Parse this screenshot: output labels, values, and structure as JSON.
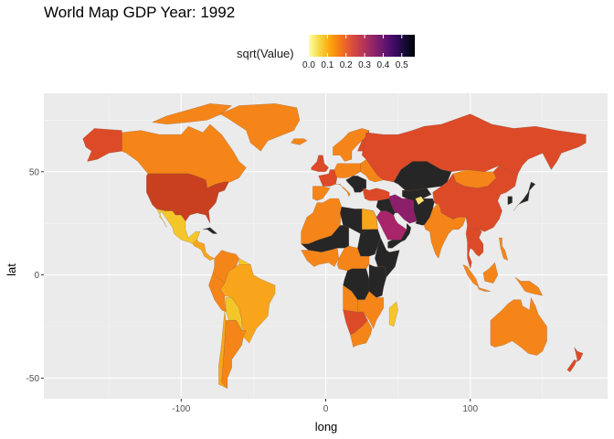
{
  "title": "World Map GDP Year: 1992",
  "legend": {
    "title": "sqrt(Value)",
    "breaks": [
      "0.0",
      "0.1",
      "0.2",
      "0.3",
      "0.4",
      "0.5"
    ],
    "break_values": [
      0.0,
      0.1,
      0.2,
      0.3,
      0.4,
      0.5
    ],
    "range": [
      0.0,
      0.57
    ],
    "scale": "inferno (reversed)",
    "colors": [
      "#fcffa4",
      "#f6d746",
      "#fca50a",
      "#f37819",
      "#dd513a",
      "#bc3754",
      "#932667",
      "#6a176e",
      "#420a68",
      "#160b39",
      "#000004"
    ]
  },
  "chart_data": {
    "type": "map",
    "title": "World Map GDP Year: 1992",
    "xlabel": "long",
    "ylabel": "lat",
    "xlim": [
      -195,
      195
    ],
    "ylim": [
      -60,
      88
    ],
    "x_ticks": [
      -100,
      0,
      100
    ],
    "x_tick_labels": [
      "-100",
      "0",
      "100"
    ],
    "y_ticks": [
      -50,
      0,
      50
    ],
    "y_tick_labels": [
      "-50",
      "0",
      "50"
    ],
    "grid": true,
    "background": "#ebebeb",
    "missing_color": "#262626",
    "fill_variable": "sqrt(Value)"
  }
}
